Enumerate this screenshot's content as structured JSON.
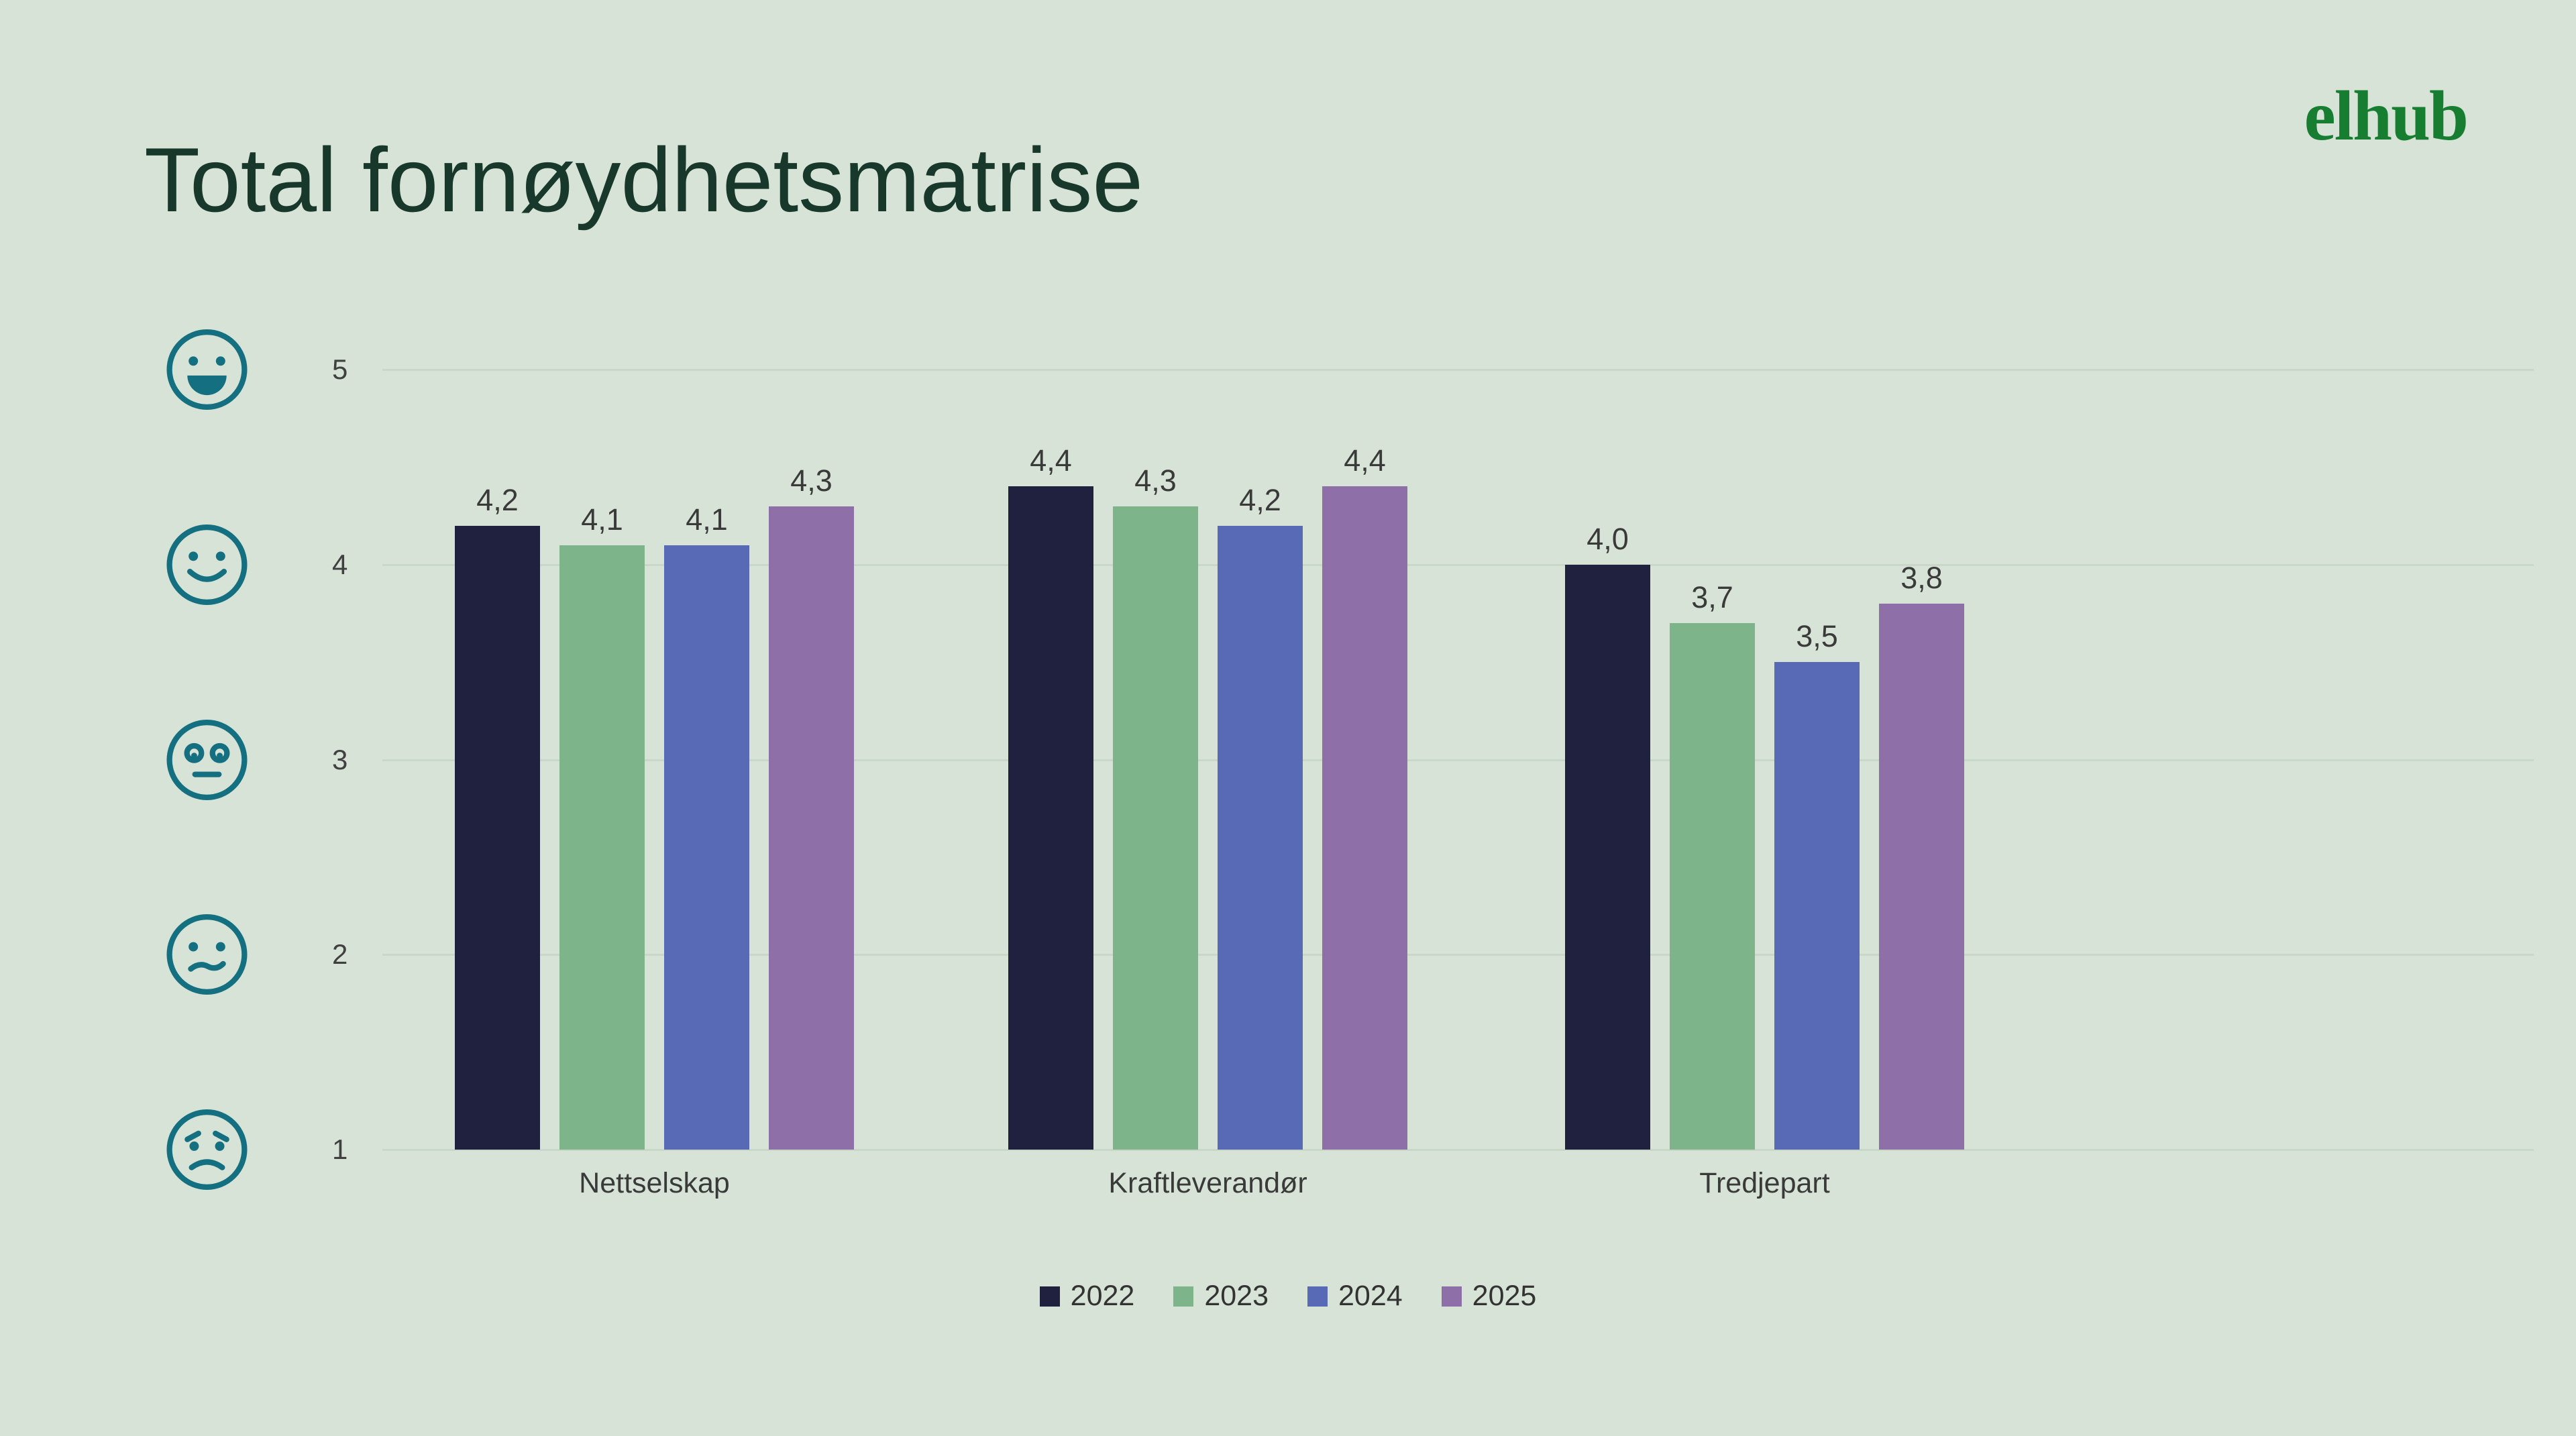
{
  "title": "Total fornøydhetsmatrise",
  "logo_text": "elhub",
  "colors": {
    "background": "#d6e3d6",
    "title": "#17382b",
    "logo": "#177d31",
    "emoji": "#146f80",
    "axis_text": "#404040",
    "gridline": "#c8d7c8"
  },
  "chart_data": {
    "type": "bar",
    "title": "Total fornøydhetsmatrise",
    "categories": [
      "Nettselskap",
      "Kraftleverandør",
      "Tredjepart"
    ],
    "series": [
      {
        "name": "2022",
        "color": "#20213f",
        "values": [
          4.2,
          4.4,
          4.0
        ],
        "value_labels": [
          "4,2",
          "4,4",
          "4,0"
        ]
      },
      {
        "name": "2023",
        "color": "#7db489",
        "values": [
          4.1,
          4.3,
          3.7
        ],
        "value_labels": [
          "4,1",
          "4,3",
          "3,7"
        ]
      },
      {
        "name": "2024",
        "color": "#5869b6",
        "values": [
          4.1,
          4.2,
          3.5
        ],
        "value_labels": [
          "4,1",
          "4,2",
          "3,5"
        ]
      },
      {
        "name": "2025",
        "color": "#8f6fa7",
        "values": [
          4.3,
          4.4,
          3.8
        ],
        "value_labels": [
          "4,3",
          "4,4",
          "3,8"
        ]
      }
    ],
    "ylim": [
      1,
      5
    ],
    "yticks": [
      "5",
      "4",
      "3",
      "2",
      "1"
    ],
    "grid": true,
    "legend_position": "bottom",
    "emoji_scale": [
      "very-happy",
      "happy",
      "neutral",
      "unhappy",
      "worried"
    ]
  }
}
